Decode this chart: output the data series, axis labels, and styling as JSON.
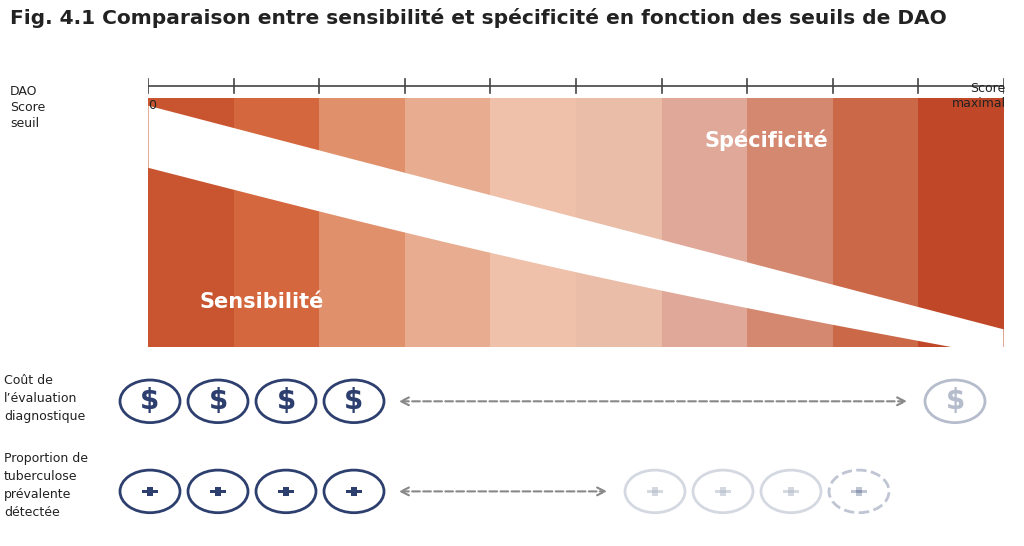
{
  "title": "Fig. 4.1 Comparaison entre sensibilité et spécificité en fonction des seuils de DAO",
  "title_fontsize": 14.5,
  "title_fontweight": "bold",
  "axis_label_left": "DAO\nScore\nseuil",
  "axis_label_right_top": "Score\nmaximal",
  "axis_label_zero": "0",
  "label_sensitivity": "Sensibilité",
  "label_specificity": "Spécificité",
  "n_columns": 10,
  "stripe_colors": [
    "#c85530",
    "#d4673d",
    "#e0906a",
    "#e8ac90",
    "#efc0aa",
    "#eabda8",
    "#e0a898",
    "#d48870",
    "#ca6848",
    "#c04828"
  ],
  "white_band_color": "#ffffff",
  "bg_color": "#ffffff",
  "text_color_white": "#ffffff",
  "text_color_dark": "#222222",
  "text_color_navy": "#2d3f6e",
  "dashed_line_color": "#888888",
  "cost_label": "Coût de\nl’évaluation\ndiagnostique",
  "tb_label": "Proportion de\ntuberculose\nprévalente\ndétectée"
}
